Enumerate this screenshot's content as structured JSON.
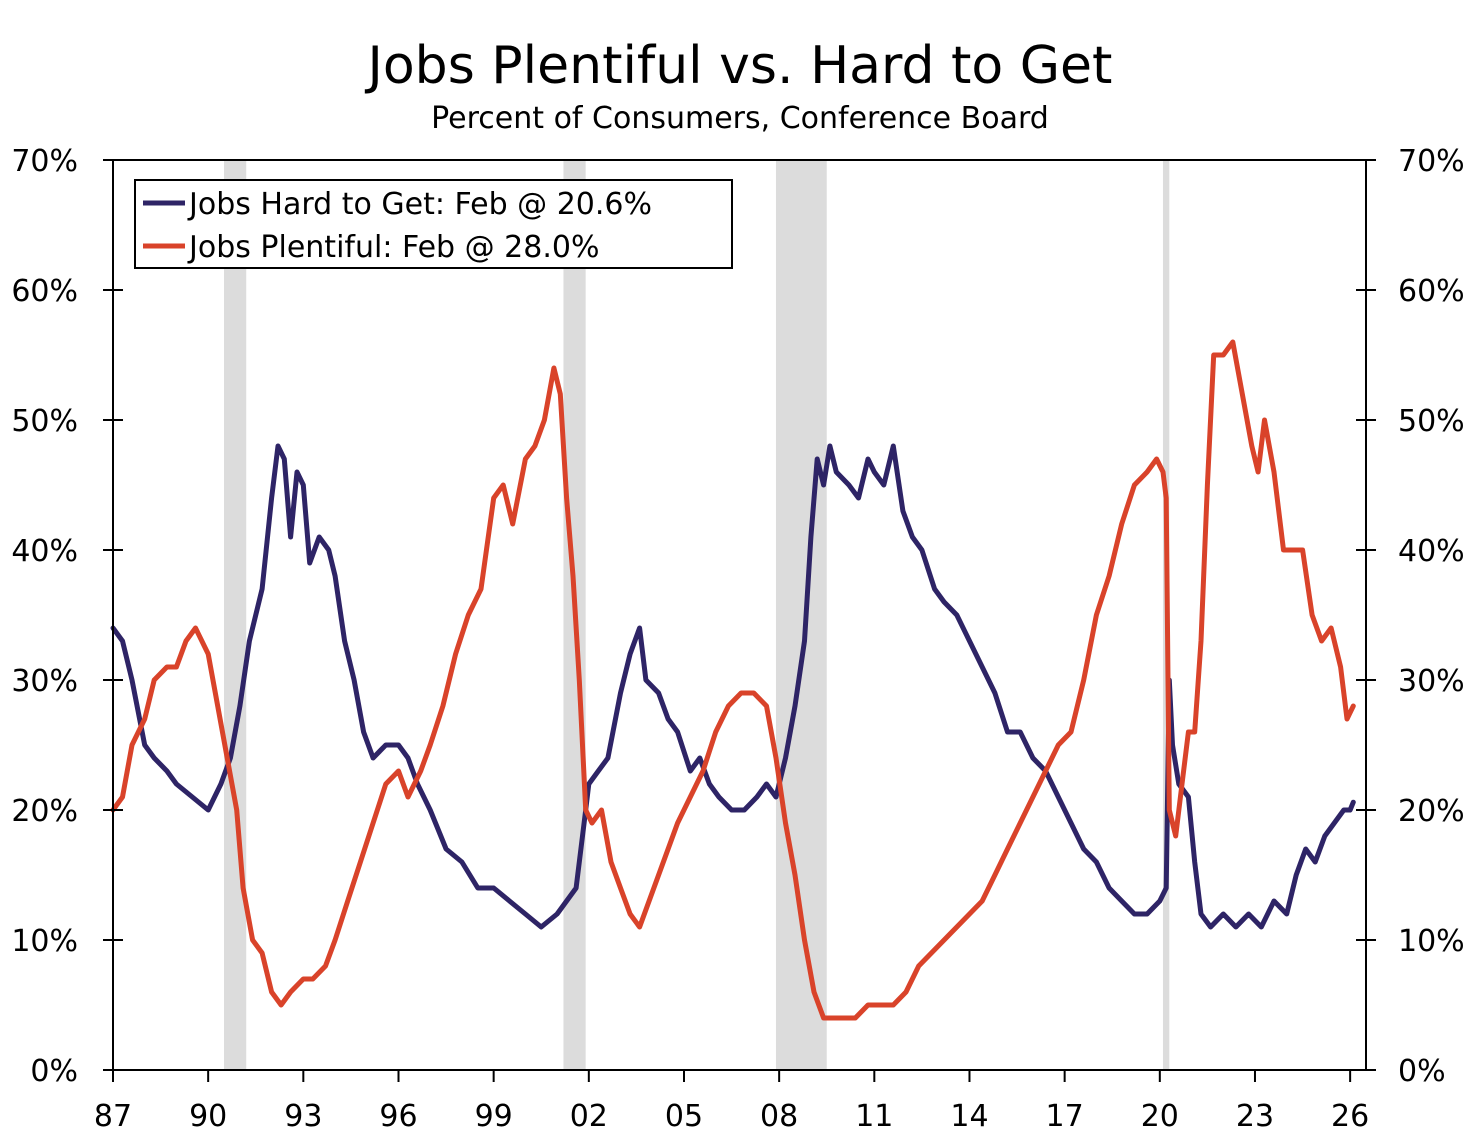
{
  "chart_data": {
    "type": "line",
    "title": "Jobs Plentiful vs. Hard to Get",
    "subtitle": "Percent of Consumers, Conference Board",
    "x_tick_labels": [
      "87",
      "90",
      "93",
      "96",
      "99",
      "02",
      "05",
      "08",
      "11",
      "14",
      "17",
      "20",
      "23",
      "26"
    ],
    "x_tick_years": [
      1987,
      1990,
      1993,
      1996,
      1999,
      2002,
      2005,
      2008,
      2011,
      2014,
      2017,
      2020,
      2023,
      2026
    ],
    "xlim": [
      1987.0,
      2026.5
    ],
    "ylim": [
      0,
      70
    ],
    "y_tick_values": [
      0,
      10,
      20,
      30,
      40,
      50,
      60,
      70
    ],
    "y_tick_labels": [
      "0%",
      "10%",
      "20%",
      "30%",
      "40%",
      "50%",
      "60%",
      "70%"
    ],
    "recessions": [
      [
        1990.5,
        1991.2
      ],
      [
        2001.2,
        2001.9
      ],
      [
        2007.9,
        2009.5
      ],
      [
        2020.1,
        2020.3
      ]
    ],
    "legend_position": "top-left",
    "colors": {
      "hard": "#2e2466",
      "plentiful": "#d9432a",
      "recession": "#dcdcdc",
      "axis": "#000000"
    },
    "series": [
      {
        "name": "Jobs Hard to Get: Feb @ 20.6%",
        "key": "hard",
        "points": [
          [
            1987.0,
            34
          ],
          [
            1987.3,
            33
          ],
          [
            1987.6,
            30
          ],
          [
            1988.0,
            25
          ],
          [
            1988.3,
            24
          ],
          [
            1988.7,
            23
          ],
          [
            1989.0,
            22
          ],
          [
            1989.5,
            21
          ],
          [
            1990.0,
            20
          ],
          [
            1990.4,
            22
          ],
          [
            1990.7,
            24
          ],
          [
            1991.0,
            28
          ],
          [
            1991.3,
            33
          ],
          [
            1991.7,
            37
          ],
          [
            1992.0,
            44
          ],
          [
            1992.2,
            48
          ],
          [
            1992.4,
            47
          ],
          [
            1992.6,
            41
          ],
          [
            1992.8,
            46
          ],
          [
            1993.0,
            45
          ],
          [
            1993.2,
            39
          ],
          [
            1993.5,
            41
          ],
          [
            1993.8,
            40
          ],
          [
            1994.0,
            38
          ],
          [
            1994.3,
            33
          ],
          [
            1994.6,
            30
          ],
          [
            1994.9,
            26
          ],
          [
            1995.2,
            24
          ],
          [
            1995.6,
            25
          ],
          [
            1996.0,
            25
          ],
          [
            1996.3,
            24
          ],
          [
            1996.6,
            22
          ],
          [
            1997.0,
            20
          ],
          [
            1997.5,
            17
          ],
          [
            1998.0,
            16
          ],
          [
            1998.5,
            14
          ],
          [
            1999.0,
            14
          ],
          [
            1999.5,
            13
          ],
          [
            2000.0,
            12
          ],
          [
            2000.5,
            11
          ],
          [
            2001.0,
            12
          ],
          [
            2001.3,
            13
          ],
          [
            2001.6,
            14
          ],
          [
            2001.9,
            20
          ],
          [
            2002.0,
            22
          ],
          [
            2002.3,
            23
          ],
          [
            2002.6,
            24
          ],
          [
            2003.0,
            29
          ],
          [
            2003.3,
            32
          ],
          [
            2003.6,
            34
          ],
          [
            2003.8,
            30
          ],
          [
            2004.2,
            29
          ],
          [
            2004.5,
            27
          ],
          [
            2004.8,
            26
          ],
          [
            2005.2,
            23
          ],
          [
            2005.5,
            24
          ],
          [
            2005.8,
            22
          ],
          [
            2006.1,
            21
          ],
          [
            2006.5,
            20
          ],
          [
            2006.9,
            20
          ],
          [
            2007.3,
            21
          ],
          [
            2007.6,
            22
          ],
          [
            2007.9,
            21
          ],
          [
            2008.2,
            24
          ],
          [
            2008.5,
            28
          ],
          [
            2008.8,
            33
          ],
          [
            2009.0,
            41
          ],
          [
            2009.2,
            47
          ],
          [
            2009.4,
            45
          ],
          [
            2009.6,
            48
          ],
          [
            2009.8,
            46
          ],
          [
            2010.2,
            45
          ],
          [
            2010.5,
            44
          ],
          [
            2010.8,
            47
          ],
          [
            2011.0,
            46
          ],
          [
            2011.3,
            45
          ],
          [
            2011.6,
            48
          ],
          [
            2011.9,
            43
          ],
          [
            2012.2,
            41
          ],
          [
            2012.5,
            40
          ],
          [
            2012.9,
            37
          ],
          [
            2013.2,
            36
          ],
          [
            2013.6,
            35
          ],
          [
            2014.0,
            33
          ],
          [
            2014.4,
            31
          ],
          [
            2014.8,
            29
          ],
          [
            2015.2,
            26
          ],
          [
            2015.6,
            26
          ],
          [
            2016.0,
            24
          ],
          [
            2016.4,
            23
          ],
          [
            2016.8,
            21
          ],
          [
            2017.2,
            19
          ],
          [
            2017.6,
            17
          ],
          [
            2018.0,
            16
          ],
          [
            2018.4,
            14
          ],
          [
            2018.8,
            13
          ],
          [
            2019.2,
            12
          ],
          [
            2019.6,
            12
          ],
          [
            2020.0,
            13
          ],
          [
            2020.2,
            14
          ],
          [
            2020.3,
            30
          ],
          [
            2020.4,
            25
          ],
          [
            2020.6,
            22
          ],
          [
            2020.9,
            21
          ],
          [
            2021.1,
            16
          ],
          [
            2021.3,
            12
          ],
          [
            2021.6,
            11
          ],
          [
            2022.0,
            12
          ],
          [
            2022.4,
            11
          ],
          [
            2022.8,
            12
          ],
          [
            2023.2,
            11
          ],
          [
            2023.6,
            13
          ],
          [
            2024.0,
            12
          ],
          [
            2024.3,
            15
          ],
          [
            2024.6,
            17
          ],
          [
            2024.9,
            16
          ],
          [
            2025.2,
            18
          ],
          [
            2025.5,
            19
          ],
          [
            2025.8,
            20
          ],
          [
            2026.0,
            20
          ],
          [
            2026.1,
            20.6
          ]
        ]
      },
      {
        "name": "Jobs Plentiful: Feb @ 28.0%",
        "key": "plentiful",
        "points": [
          [
            1987.0,
            20
          ],
          [
            1987.3,
            21
          ],
          [
            1987.6,
            25
          ],
          [
            1988.0,
            27
          ],
          [
            1988.3,
            30
          ],
          [
            1988.7,
            31
          ],
          [
            1989.0,
            31
          ],
          [
            1989.3,
            33
          ],
          [
            1989.6,
            34
          ],
          [
            1990.0,
            32
          ],
          [
            1990.3,
            28
          ],
          [
            1990.6,
            24
          ],
          [
            1990.9,
            20
          ],
          [
            1991.1,
            14
          ],
          [
            1991.4,
            10
          ],
          [
            1991.7,
            9
          ],
          [
            1992.0,
            6
          ],
          [
            1992.3,
            5
          ],
          [
            1992.6,
            6
          ],
          [
            1993.0,
            7
          ],
          [
            1993.3,
            7
          ],
          [
            1993.7,
            8
          ],
          [
            1994.0,
            10
          ],
          [
            1994.4,
            13
          ],
          [
            1994.8,
            16
          ],
          [
            1995.2,
            19
          ],
          [
            1995.6,
            22
          ],
          [
            1996.0,
            23
          ],
          [
            1996.3,
            21
          ],
          [
            1996.7,
            23
          ],
          [
            1997.0,
            25
          ],
          [
            1997.4,
            28
          ],
          [
            1997.8,
            32
          ],
          [
            1998.2,
            35
          ],
          [
            1998.6,
            37
          ],
          [
            1999.0,
            44
          ],
          [
            1999.3,
            45
          ],
          [
            1999.6,
            42
          ],
          [
            2000.0,
            47
          ],
          [
            2000.3,
            48
          ],
          [
            2000.6,
            50
          ],
          [
            2000.9,
            54
          ],
          [
            2001.1,
            52
          ],
          [
            2001.3,
            44
          ],
          [
            2001.5,
            38
          ],
          [
            2001.7,
            30
          ],
          [
            2001.9,
            20
          ],
          [
            2002.1,
            19
          ],
          [
            2002.4,
            20
          ],
          [
            2002.7,
            16
          ],
          [
            2003.0,
            14
          ],
          [
            2003.3,
            12
          ],
          [
            2003.6,
            11
          ],
          [
            2003.9,
            13
          ],
          [
            2004.2,
            15
          ],
          [
            2004.5,
            17
          ],
          [
            2004.8,
            19
          ],
          [
            2005.2,
            21
          ],
          [
            2005.6,
            23
          ],
          [
            2006.0,
            26
          ],
          [
            2006.4,
            28
          ],
          [
            2006.8,
            29
          ],
          [
            2007.2,
            29
          ],
          [
            2007.6,
            28
          ],
          [
            2007.9,
            24
          ],
          [
            2008.2,
            19
          ],
          [
            2008.5,
            15
          ],
          [
            2008.8,
            10
          ],
          [
            2009.1,
            6
          ],
          [
            2009.4,
            4
          ],
          [
            2009.7,
            4
          ],
          [
            2010.0,
            4
          ],
          [
            2010.4,
            4
          ],
          [
            2010.8,
            5
          ],
          [
            2011.2,
            5
          ],
          [
            2011.6,
            5
          ],
          [
            2012.0,
            6
          ],
          [
            2012.4,
            8
          ],
          [
            2012.8,
            9
          ],
          [
            2013.2,
            10
          ],
          [
            2013.6,
            11
          ],
          [
            2014.0,
            12
          ],
          [
            2014.4,
            13
          ],
          [
            2014.8,
            15
          ],
          [
            2015.2,
            17
          ],
          [
            2015.6,
            19
          ],
          [
            2016.0,
            21
          ],
          [
            2016.4,
            23
          ],
          [
            2016.8,
            25
          ],
          [
            2017.2,
            26
          ],
          [
            2017.6,
            30
          ],
          [
            2018.0,
            35
          ],
          [
            2018.4,
            38
          ],
          [
            2018.8,
            42
          ],
          [
            2019.2,
            45
          ],
          [
            2019.6,
            46
          ],
          [
            2019.9,
            47
          ],
          [
            2020.1,
            46
          ],
          [
            2020.2,
            44
          ],
          [
            2020.3,
            20
          ],
          [
            2020.5,
            18
          ],
          [
            2020.7,
            22
          ],
          [
            2020.9,
            26
          ],
          [
            2021.1,
            26
          ],
          [
            2021.3,
            33
          ],
          [
            2021.5,
            45
          ],
          [
            2021.7,
            55
          ],
          [
            2022.0,
            55
          ],
          [
            2022.3,
            56
          ],
          [
            2022.6,
            52
          ],
          [
            2022.9,
            48
          ],
          [
            2023.1,
            46
          ],
          [
            2023.3,
            50
          ],
          [
            2023.6,
            46
          ],
          [
            2023.9,
            40
          ],
          [
            2024.2,
            40
          ],
          [
            2024.5,
            40
          ],
          [
            2024.8,
            35
          ],
          [
            2025.1,
            33
          ],
          [
            2025.4,
            34
          ],
          [
            2025.7,
            31
          ],
          [
            2025.9,
            27
          ],
          [
            2026.1,
            28
          ]
        ]
      }
    ]
  }
}
